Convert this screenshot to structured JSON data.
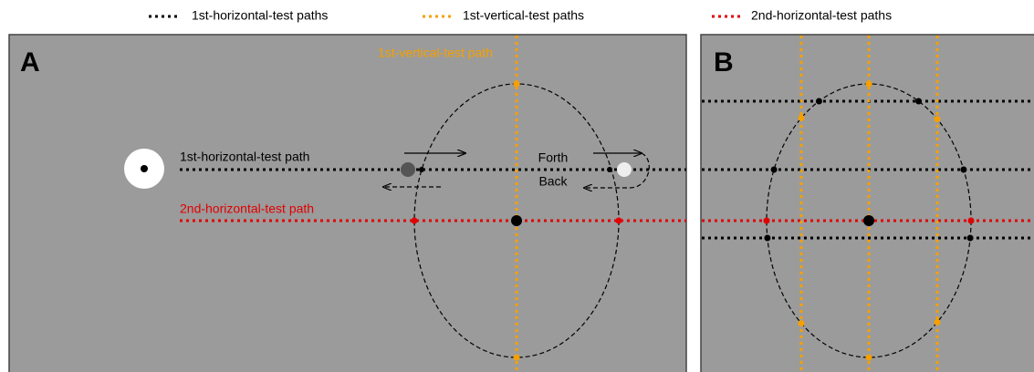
{
  "legend": {
    "items": [
      "1st-horizontal-test paths",
      "1st-vertical-test paths",
      "2nd-horizontal-test paths"
    ]
  },
  "panel_a": {
    "label": "A",
    "vertical_path_label": "1st-vertical-test path",
    "horizontal_path_label": "1st-horizontal-test path",
    "second_horizontal_path_label": "2nd-horizontal-test path",
    "forth_label": "Forth",
    "back_label": "Back"
  },
  "panel_b": {
    "label": "B"
  }
}
